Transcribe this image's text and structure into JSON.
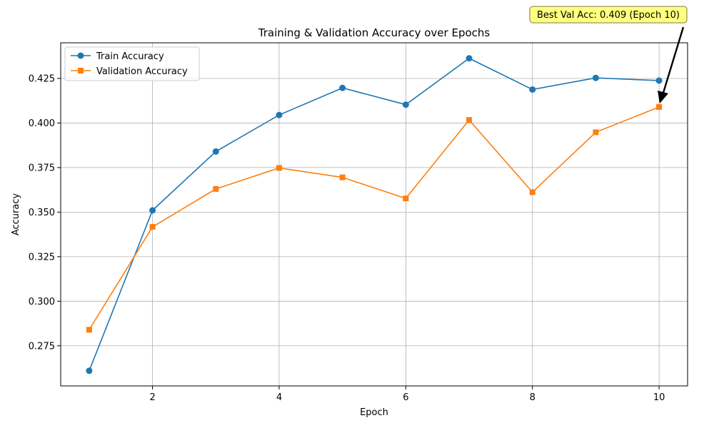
{
  "chart_data": {
    "type": "line",
    "title": "Training & Validation Accuracy over Epochs",
    "xlabel": "Epoch",
    "ylabel": "Accuracy",
    "x": [
      1,
      2,
      3,
      4,
      5,
      6,
      7,
      8,
      9,
      10
    ],
    "xlim": [
      0.55,
      10.45
    ],
    "ylim": [
      0.2525,
      0.445
    ],
    "xticks": [
      2,
      4,
      6,
      8,
      10
    ],
    "xtick_labels": [
      "2",
      "4",
      "6",
      "8",
      "10"
    ],
    "yticks": [
      0.275,
      0.3,
      0.325,
      0.35,
      0.375,
      0.4,
      0.425
    ],
    "ytick_labels": [
      "0.275",
      "0.300",
      "0.325",
      "0.350",
      "0.375",
      "0.400",
      "0.425"
    ],
    "grid": true,
    "legend_position": "top-left",
    "series": [
      {
        "name": "Train Accuracy",
        "marker": "circle",
        "color": "#1f77b4",
        "values": [
          0.261,
          0.351,
          0.384,
          0.4045,
          0.4197,
          0.4103,
          0.4363,
          0.4188,
          0.4253,
          0.4238
        ]
      },
      {
        "name": "Validation Accuracy",
        "marker": "square",
        "color": "#ff7f0e",
        "values": [
          0.284,
          0.3417,
          0.363,
          0.3748,
          0.3695,
          0.3577,
          0.4017,
          0.3612,
          0.3948,
          0.409
        ]
      }
    ],
    "annotation": {
      "text": "Best Val Acc: 0.409 (Epoch 10)",
      "x": 10,
      "y": 0.409,
      "box_color": "#ffff80",
      "arrow_color": "#000000"
    }
  }
}
